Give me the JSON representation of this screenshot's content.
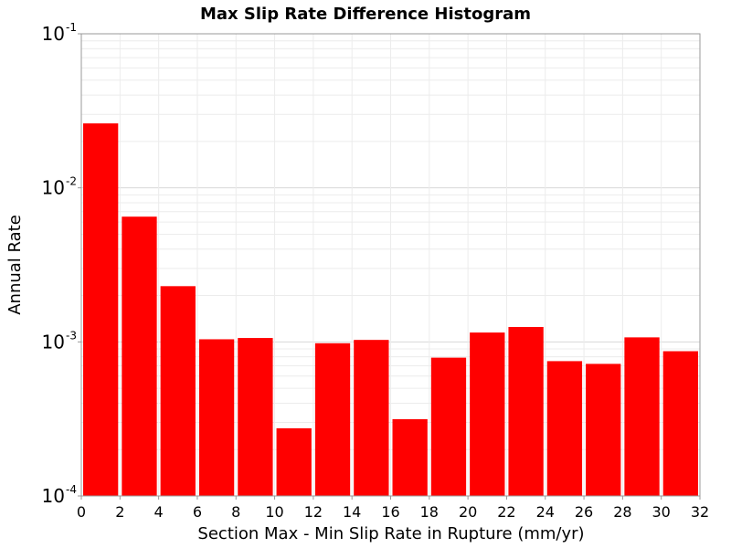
{
  "chart_data": {
    "type": "bar",
    "title": "Max Slip Rate Difference Histogram",
    "xlabel": "Section Max - Min Slip Rate in Rupture (mm/yr)",
    "ylabel": "Annual Rate",
    "yscale": "log",
    "xlim": [
      0,
      32
    ],
    "ylim": [
      0.0001,
      0.1
    ],
    "bar_width": 2,
    "color": "#ff0000",
    "grid": true,
    "x_ticks": [
      "0",
      "2",
      "4",
      "6",
      "8",
      "10",
      "12",
      "14",
      "16",
      "18",
      "20",
      "22",
      "24",
      "26",
      "28",
      "30",
      "32"
    ],
    "y_ticks": [
      {
        "base": "10",
        "exp": "-4"
      },
      {
        "base": "10",
        "exp": "-3"
      },
      {
        "base": "10",
        "exp": "-2"
      },
      {
        "base": "10",
        "exp": "-1"
      }
    ],
    "bins": [
      {
        "x": 1,
        "value": 0.0262
      },
      {
        "x": 3,
        "value": 0.0065
      },
      {
        "x": 5,
        "value": 0.0023
      },
      {
        "x": 7,
        "value": 0.00104
      },
      {
        "x": 9,
        "value": 0.00106
      },
      {
        "x": 11,
        "value": 0.000275
      },
      {
        "x": 13,
        "value": 0.00098
      },
      {
        "x": 15,
        "value": 0.00103
      },
      {
        "x": 17,
        "value": 0.000315
      },
      {
        "x": 19,
        "value": 0.00079
      },
      {
        "x": 21,
        "value": 0.00115
      },
      {
        "x": 23,
        "value": 0.00125
      },
      {
        "x": 25,
        "value": 0.00075
      },
      {
        "x": 27,
        "value": 0.00072
      },
      {
        "x": 29,
        "value": 0.00107
      },
      {
        "x": 31,
        "value": 0.00087
      }
    ]
  }
}
